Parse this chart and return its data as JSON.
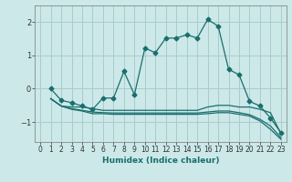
{
  "xlabel": "Humidex (Indice chaleur)",
  "bg_color": "#cce8e8",
  "grid_color": "#aacccc",
  "line_color": "#1a6e6e",
  "xlim": [
    -0.5,
    23.5
  ],
  "ylim": [
    -1.6,
    2.5
  ],
  "yticks": [
    -1,
    0,
    1,
    2
  ],
  "xticks": [
    0,
    1,
    2,
    3,
    4,
    5,
    6,
    7,
    8,
    9,
    10,
    11,
    12,
    13,
    14,
    15,
    16,
    17,
    18,
    19,
    20,
    21,
    22,
    23
  ],
  "series1_x": [
    1,
    2,
    3,
    4,
    5,
    6,
    7,
    8,
    9,
    10,
    11,
    12,
    13,
    14,
    15,
    16,
    17,
    18,
    19,
    20,
    21,
    22,
    23
  ],
  "series1_y": [
    0.0,
    -0.35,
    -0.42,
    -0.52,
    -0.62,
    -0.28,
    -0.28,
    0.52,
    -0.18,
    1.22,
    1.08,
    1.52,
    1.52,
    1.62,
    1.52,
    2.08,
    1.88,
    0.58,
    0.42,
    -0.38,
    -0.52,
    -0.88,
    -1.32
  ],
  "series2_x": [
    1,
    2,
    3,
    4,
    5,
    6,
    7,
    8,
    9,
    10,
    11,
    12,
    13,
    14,
    15,
    16,
    17,
    18,
    19,
    20,
    21,
    22,
    23
  ],
  "series2_y": [
    -0.3,
    -0.52,
    -0.55,
    -0.55,
    -0.6,
    -0.65,
    -0.65,
    -0.65,
    -0.65,
    -0.65,
    -0.65,
    -0.65,
    -0.65,
    -0.65,
    -0.65,
    -0.55,
    -0.5,
    -0.5,
    -0.55,
    -0.55,
    -0.62,
    -0.72,
    -1.35
  ],
  "series3_x": [
    1,
    2,
    3,
    4,
    5,
    6,
    7,
    8,
    9,
    10,
    11,
    12,
    13,
    14,
    15,
    16,
    17,
    18,
    19,
    20,
    21,
    22,
    23
  ],
  "series3_y": [
    -0.3,
    -0.52,
    -0.6,
    -0.65,
    -0.7,
    -0.72,
    -0.73,
    -0.73,
    -0.73,
    -0.73,
    -0.73,
    -0.73,
    -0.73,
    -0.73,
    -0.73,
    -0.7,
    -0.67,
    -0.67,
    -0.72,
    -0.78,
    -0.92,
    -1.12,
    -1.47
  ],
  "series4_x": [
    1,
    2,
    3,
    4,
    5,
    6,
    7,
    8,
    9,
    10,
    11,
    12,
    13,
    14,
    15,
    16,
    17,
    18,
    19,
    20,
    21,
    22,
    23
  ],
  "series4_y": [
    -0.3,
    -0.52,
    -0.62,
    -0.67,
    -0.75,
    -0.75,
    -0.77,
    -0.77,
    -0.77,
    -0.77,
    -0.77,
    -0.77,
    -0.77,
    -0.77,
    -0.77,
    -0.75,
    -0.72,
    -0.72,
    -0.77,
    -0.82,
    -0.97,
    -1.22,
    -1.52
  ]
}
